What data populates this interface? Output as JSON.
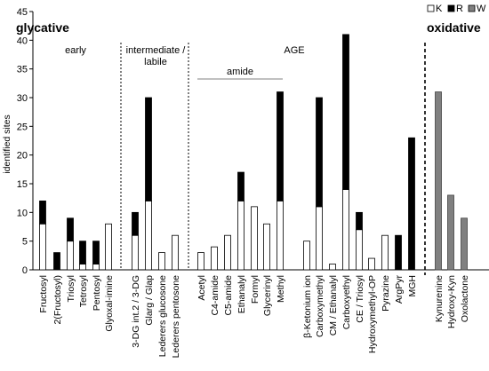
{
  "chart_data": {
    "type": "bar",
    "stacked": true,
    "ylabel": "identified sites",
    "ylim": [
      0,
      45
    ],
    "yticks": [
      0,
      5,
      10,
      15,
      20,
      25,
      30,
      35,
      40,
      45
    ],
    "grid": false,
    "legend": {
      "placement": "top-right",
      "entries": [
        {
          "name": "K",
          "color": "#ffffff"
        },
        {
          "name": "R",
          "color": "#000000"
        },
        {
          "name": "W",
          "color": "#808080"
        }
      ]
    },
    "categories": [
      "Fructosyl",
      "2(Fructosyl)",
      "Triosyl",
      "Tetrosyl",
      "Pentosyl",
      "Glyoxal-imine",
      "3-DG int.2 / 3-DG",
      "Glarg / Glap",
      "Lederers glucosone",
      "Lederers pentosone",
      "Acetyl",
      "C4-amide",
      "C5-amide",
      "Ethanalyl",
      "Formyl",
      "Glycerinyl",
      "Methyl",
      "β-Ketonium ion",
      "Carboxymethyl",
      "CM / Ethanalyl",
      "Carboxyethyl",
      "CE / Triosyl",
      "Hydroxymethyl-OP",
      "Pyrazine",
      "ArgPyr",
      "MGH",
      "Kynurenine",
      "Hydroxy-Kyn",
      "Oxolactone"
    ],
    "series": [
      {
        "name": "K",
        "values": [
          8,
          0,
          5,
          1,
          1,
          8,
          6,
          12,
          3,
          6,
          3,
          4,
          6,
          12,
          11,
          8,
          12,
          5,
          11,
          1,
          14,
          7,
          2,
          6,
          0,
          0,
          0,
          0,
          0
        ]
      },
      {
        "name": "R",
        "values": [
          4,
          3,
          4,
          4,
          4,
          0,
          4,
          18,
          0,
          0,
          0,
          0,
          0,
          5,
          0,
          0,
          19,
          0,
          19,
          0,
          27,
          3,
          0,
          0,
          6,
          23,
          0,
          0,
          0
        ]
      },
      {
        "name": "W",
        "values": [
          0,
          0,
          0,
          0,
          0,
          0,
          0,
          0,
          0,
          0,
          0,
          0,
          0,
          0,
          0,
          0,
          0,
          0,
          0,
          0,
          0,
          0,
          0,
          0,
          0,
          0,
          31,
          13,
          9
        ]
      }
    ],
    "annotations": {
      "glycative": "glycative",
      "oxidative": "oxidative",
      "early": "early",
      "intermediate_line1": "intermediate /",
      "intermediate_line2": "labile",
      "age": "AGE",
      "amide": "amide"
    }
  }
}
